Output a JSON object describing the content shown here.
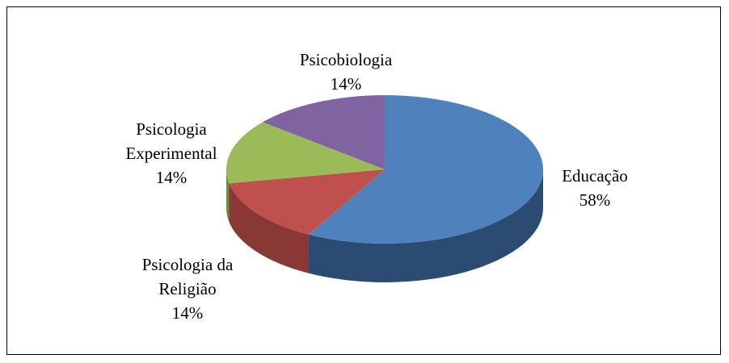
{
  "chart_data": {
    "type": "pie3d",
    "categories": [
      "Educação",
      "Psicologia da Religião",
      "Psicologia Experimental",
      "Psicobiologia"
    ],
    "values": [
      58,
      14,
      14,
      14
    ],
    "value_labels": [
      "58%",
      "14%",
      "14%",
      "14%"
    ],
    "colors": [
      "#4f81bd",
      "#c0504d",
      "#9bbb59",
      "#8064a2"
    ],
    "side_colors": [
      "#2b4b72",
      "#8a3836",
      "#6f8a3c",
      "#5b4676"
    ]
  }
}
